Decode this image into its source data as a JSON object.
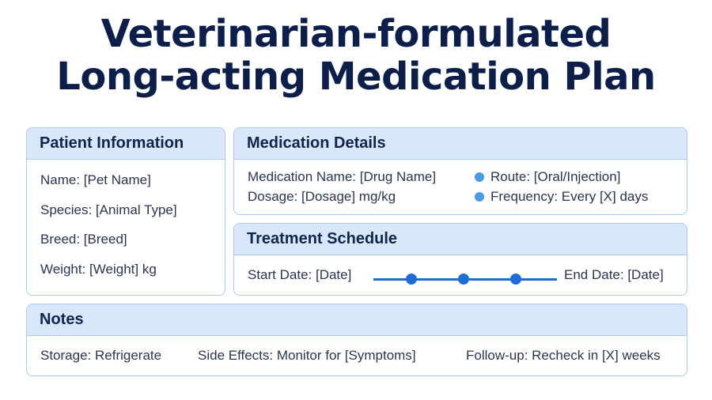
{
  "title": {
    "line1": "Veterinarian-formulated",
    "line2": "Long-acting Medication Plan"
  },
  "patient": {
    "header": "Patient Information",
    "name": "Name: [Pet Name]",
    "species": "Species: [Animal Type]",
    "breed": "Breed: [Breed]",
    "weight": "Weight: [Weight] kg"
  },
  "medication": {
    "header": "Medication Details",
    "name": "Medication Name: [Drug Name]",
    "dosage": "Dosage: [Dosage] mg/kg",
    "route": "Route: [Oral/Injection]",
    "frequency": "Frequency: Every [X] days",
    "bullet_color": "#4a9be6"
  },
  "schedule": {
    "header": "Treatment Schedule",
    "start": "Start Date: [Date]",
    "end": "End Date: [Date]",
    "timeline_color": "#1f6ed8"
  },
  "notes": {
    "header": "Notes",
    "storage": "Storage: Refrigerate",
    "side_effects": "Side Effects: Monitor for [Symptoms]",
    "follow_up": "Follow-up: Recheck in [X] weeks"
  }
}
